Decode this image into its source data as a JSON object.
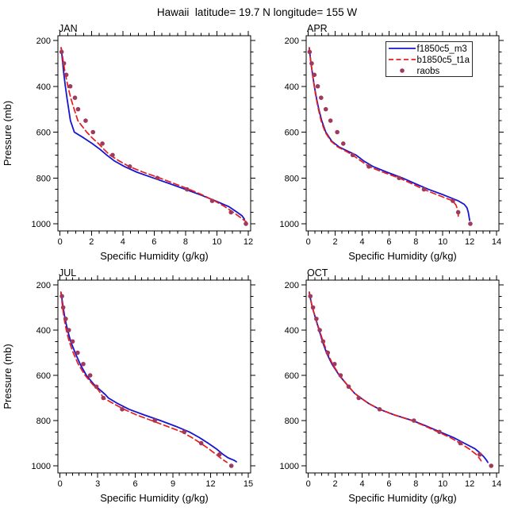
{
  "title": "Hawaii  latitude= 19.7 N longitude= 155 W",
  "chart_data": {
    "type": "line",
    "title": "Hawaii  latitude= 19.7 N longitude= 155 W",
    "x_label": "Specific Humidity (g/kg)",
    "y_label": "Pressure (mb)",
    "y_axis": {
      "ticks": [
        200,
        400,
        600,
        800,
        1000
      ],
      "minor_step": 50,
      "range": [
        200,
        1000
      ],
      "inverted": true
    },
    "legend": {
      "position": "top-right of APR panel",
      "entries": [
        {
          "label": "f1850c5_m3",
          "style": "solid",
          "color": "#1616d1"
        },
        {
          "label": "b1850c5_t1a",
          "style": "dashed",
          "color": "#ea1c1c"
        },
        {
          "label": "raobs",
          "style": "dots",
          "color": "#a03a5a"
        }
      ]
    },
    "panels": [
      {
        "label": "JAN",
        "x_axis": {
          "min": 0,
          "max": 12,
          "major_step": 2,
          "minor_step": 0.5
        },
        "series": [
          {
            "name": "f1850c5_m3",
            "style": "solid",
            "color": "#1616d1",
            "pressure_mb": [
              232,
              250,
              300,
              350,
              400,
              450,
              500,
              550,
              600,
              625,
              650,
              675,
              700,
              725,
              750,
              775,
              800,
              825,
              850,
              875,
              900,
              925,
              950,
              965,
              980
            ],
            "q_gkg": [
              0.07,
              0.1,
              0.17,
              0.25,
              0.34,
              0.44,
              0.55,
              0.66,
              0.91,
              1.5,
              2.05,
              2.55,
              2.98,
              3.45,
              4.1,
              4.9,
              5.95,
              7.0,
              8.0,
              9.0,
              9.9,
              10.75,
              11.3,
              11.6,
              11.75
            ]
          },
          {
            "name": "b1850c5_t1a",
            "style": "dashed",
            "color": "#ea1c1c",
            "pressure_mb": [
              232,
              250,
              300,
              350,
              400,
              450,
              500,
              550,
              600,
              625,
              650,
              675,
              700,
              725,
              750,
              775,
              800,
              825,
              850,
              875,
              900,
              925,
              950,
              975,
              992
            ],
            "q_gkg": [
              0.07,
              0.12,
              0.22,
              0.35,
              0.5,
              0.68,
              0.9,
              1.14,
              1.7,
              2.05,
              2.45,
              2.8,
              3.17,
              3.75,
              4.4,
              5.3,
              6.35,
              7.3,
              8.25,
              9.1,
              9.85,
              10.5,
              11.05,
              11.55,
              11.88
            ]
          },
          {
            "name": "raobs",
            "style": "dots",
            "color": "#a03a5a",
            "pressure_mb": [
              250,
              300,
              350,
              400,
              450,
              500,
              550,
              600,
              650,
              700,
              750,
              800,
              850,
              900,
              950,
              1000
            ],
            "q_gkg": [
              0.1,
              0.25,
              0.4,
              0.65,
              0.95,
              1.15,
              1.63,
              2.1,
              2.7,
              3.35,
              4.45,
              6.2,
              8.1,
              9.7,
              10.9,
              11.85
            ]
          }
        ]
      },
      {
        "label": "APR",
        "x_axis": {
          "min": 0,
          "max": 14,
          "major_step": 2,
          "minor_step": 0.5
        },
        "series": [
          {
            "name": "f1850c5_m3",
            "style": "solid",
            "color": "#1616d1",
            "pressure_mb": [
              232,
              250,
              300,
              350,
              400,
              450,
              500,
              550,
              600,
              640,
              665,
              685,
              700,
              725,
              750,
              775,
              800,
              825,
              850,
              875,
              900,
              915,
              930,
              950,
              985
            ],
            "q_gkg": [
              0.07,
              0.1,
              0.2,
              0.32,
              0.45,
              0.6,
              0.78,
              1.0,
              1.3,
              1.75,
              2.3,
              3.0,
              3.55,
              4.1,
              4.8,
              5.85,
              7.0,
              7.95,
              8.95,
              10.1,
              11.15,
              11.6,
              11.8,
              11.9,
              12.0
            ]
          },
          {
            "name": "b1850c5_t1a",
            "style": "dashed",
            "color": "#ea1c1c",
            "pressure_mb": [
              232,
              250,
              300,
              350,
              400,
              450,
              500,
              550,
              600,
              640,
              665,
              685,
              700,
              725,
              750,
              775,
              800,
              825,
              850,
              875,
              900,
              920,
              940,
              960,
              980
            ],
            "q_gkg": [
              0.07,
              0.1,
              0.2,
              0.32,
              0.44,
              0.58,
              0.75,
              0.95,
              1.25,
              1.7,
              2.2,
              2.85,
              3.3,
              3.9,
              4.5,
              5.55,
              6.75,
              7.7,
              8.6,
              9.65,
              10.75,
              11.0,
              11.1,
              11.15,
              11.15
            ]
          },
          {
            "name": "raobs",
            "style": "dots",
            "color": "#a03a5a",
            "pressure_mb": [
              250,
              300,
              350,
              400,
              450,
              500,
              550,
              600,
              650,
              700,
              750,
              800,
              850,
              900,
              950,
              1000
            ],
            "q_gkg": [
              0.1,
              0.25,
              0.45,
              0.7,
              0.95,
              1.3,
              1.65,
              2.15,
              2.6,
              3.3,
              4.5,
              6.75,
              8.6,
              10.75,
              11.15,
              12.05
            ]
          }
        ]
      },
      {
        "label": "JUL",
        "x_axis": {
          "min": 0,
          "max": 15,
          "major_step": 3,
          "minor_step": 0.5
        },
        "series": [
          {
            "name": "f1850c5_m3",
            "style": "solid",
            "color": "#1616d1",
            "pressure_mb": [
              232,
              250,
              300,
              350,
              400,
              450,
              500,
              550,
              600,
              640,
              665,
              685,
              700,
              725,
              750,
              775,
              800,
              825,
              850,
              875,
              900,
              925,
              950,
              965,
              975,
              982
            ],
            "q_gkg": [
              0.07,
              0.12,
              0.25,
              0.4,
              0.6,
              0.85,
              1.2,
              1.6,
              2.1,
              2.7,
              3.2,
              3.6,
              3.85,
              4.6,
              5.5,
              6.7,
              8.0,
              9.2,
              10.3,
              11.1,
              11.8,
              12.45,
              13.0,
              13.4,
              13.85,
              14.05
            ]
          },
          {
            "name": "b1850c5_t1a",
            "style": "dashed",
            "color": "#ea1c1c",
            "pressure_mb": [
              232,
              250,
              300,
              350,
              400,
              450,
              500,
              550,
              600,
              640,
              665,
              685,
              700,
              725,
              750,
              775,
              800,
              825,
              850,
              875,
              900,
              925,
              950,
              968,
              985
            ],
            "q_gkg": [
              0.07,
              0.1,
              0.2,
              0.33,
              0.5,
              0.73,
              1.05,
              1.45,
              2.0,
              2.6,
              3.05,
              3.3,
              3.45,
              4.25,
              5.1,
              6.1,
              7.3,
              8.5,
              9.7,
              10.5,
              11.2,
              11.85,
              12.45,
              12.85,
              13.3
            ]
          },
          {
            "name": "raobs",
            "style": "dots",
            "color": "#a03a5a",
            "pressure_mb": [
              250,
              300,
              350,
              400,
              450,
              500,
              550,
              600,
              650,
              700,
              750,
              800,
              850,
              900,
              950,
              1000
            ],
            "q_gkg": [
              0.15,
              0.25,
              0.45,
              0.7,
              1.0,
              1.4,
              1.85,
              2.4,
              2.9,
              3.45,
              4.95,
              7.55,
              9.9,
              11.25,
              12.7,
              13.65
            ]
          }
        ]
      },
      {
        "label": "OCT",
        "x_axis": {
          "min": 0,
          "max": 14,
          "major_step": 2,
          "minor_step": 0.5
        },
        "series": [
          {
            "name": "f1850c5_m3",
            "style": "solid",
            "color": "#1616d1",
            "pressure_mb": [
              232,
              250,
              300,
              350,
              400,
              450,
              500,
              550,
              600,
              650,
              680,
              700,
              725,
              750,
              775,
              800,
              825,
              850,
              875,
              900,
              925,
              945,
              960,
              975,
              985
            ],
            "q_gkg": [
              0.07,
              0.12,
              0.3,
              0.55,
              0.8,
              1.05,
              1.35,
              1.75,
              2.3,
              3.0,
              3.45,
              3.9,
              4.5,
              5.3,
              6.4,
              7.75,
              8.8,
              9.8,
              10.8,
              11.6,
              12.4,
              12.8,
              13.05,
              13.25,
              13.35
            ]
          },
          {
            "name": "b1850c5_t1a",
            "style": "dashed",
            "color": "#ea1c1c",
            "pressure_mb": [
              232,
              250,
              300,
              350,
              400,
              450,
              500,
              550,
              600,
              650,
              680,
              700,
              725,
              750,
              775,
              800,
              825,
              850,
              875,
              900,
              925,
              950,
              965,
              978
            ],
            "q_gkg": [
              0.07,
              0.12,
              0.3,
              0.56,
              0.83,
              1.1,
              1.42,
              1.8,
              2.33,
              3.0,
              3.45,
              3.9,
              4.5,
              5.3,
              6.4,
              7.7,
              8.7,
              9.65,
              10.55,
              11.3,
              11.95,
              12.5,
              12.7,
              12.85
            ]
          },
          {
            "name": "raobs",
            "style": "dots",
            "color": "#a03a5a",
            "pressure_mb": [
              250,
              300,
              350,
              400,
              450,
              500,
              550,
              600,
              650,
              700,
              750,
              800,
              850,
              900,
              950,
              1000
            ],
            "q_gkg": [
              0.15,
              0.35,
              0.6,
              0.85,
              1.1,
              1.45,
              1.95,
              2.4,
              3.0,
              3.75,
              5.3,
              7.85,
              9.75,
              11.3,
              12.75,
              13.6
            ]
          }
        ]
      }
    ]
  }
}
